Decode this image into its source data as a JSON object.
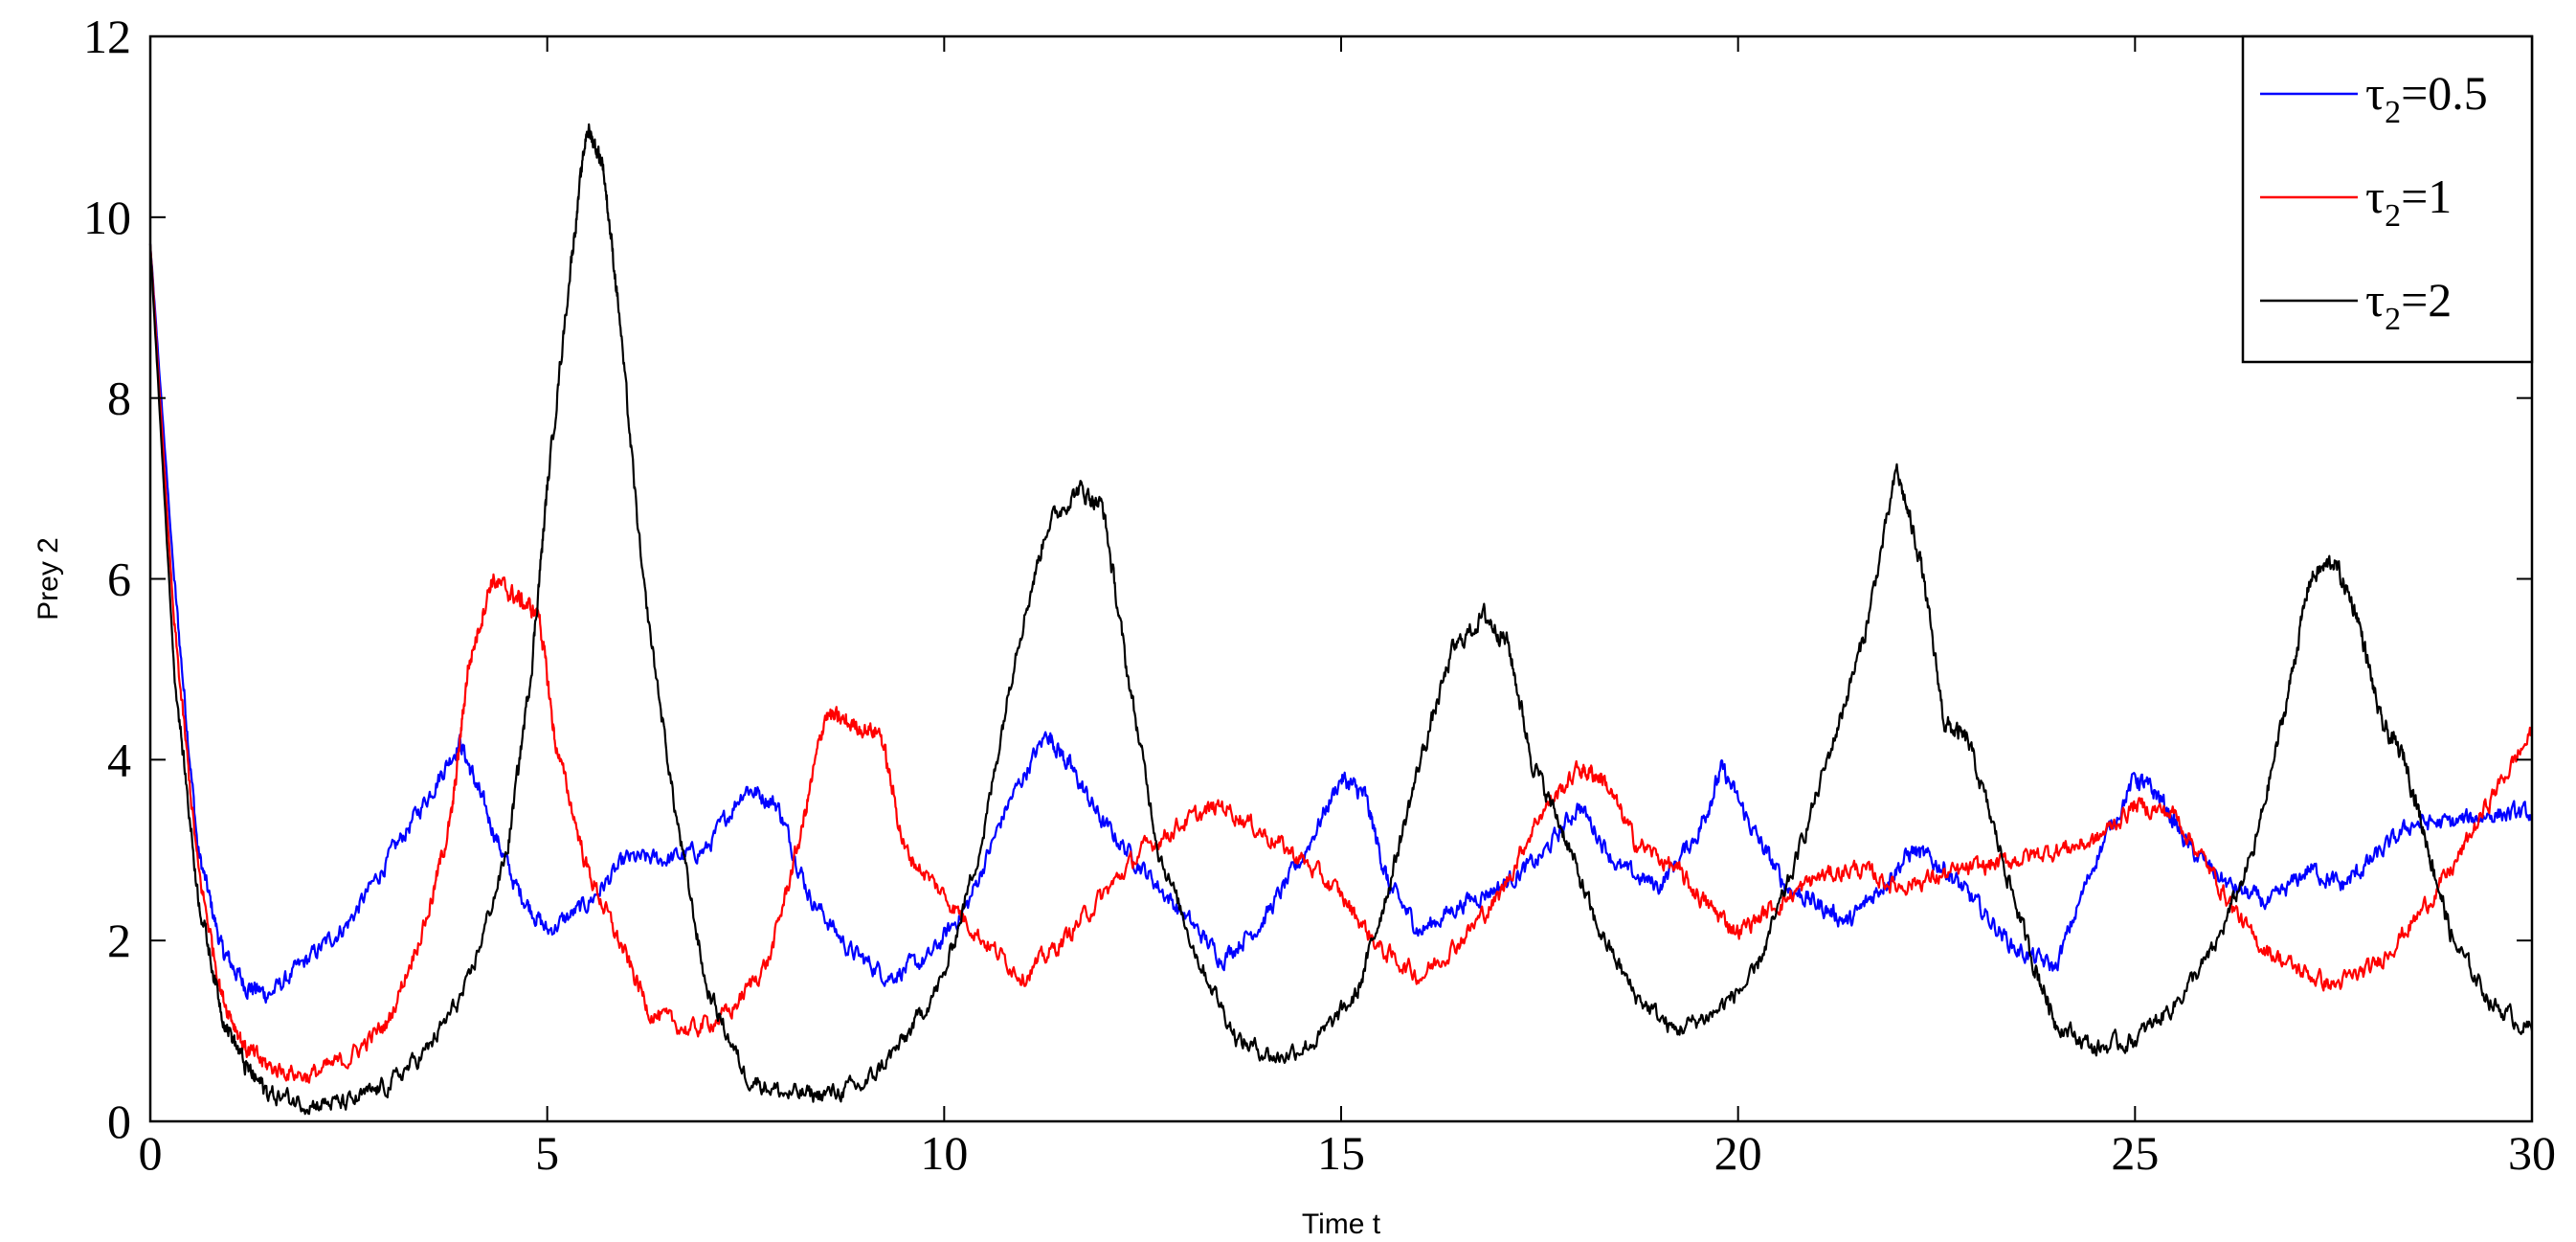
{
  "chart_data": {
    "type": "line",
    "title": "",
    "xlabel": "Time t",
    "ylabel": "Prey 2",
    "xlim": [
      0,
      30
    ],
    "ylim": [
      0,
      12
    ],
    "x_ticks": [
      "0",
      "5",
      "10",
      "15",
      "20",
      "25",
      "30"
    ],
    "y_ticks": [
      "0",
      "2",
      "4",
      "6",
      "8",
      "10",
      "12"
    ],
    "grid": false,
    "legend": {
      "position": "top-right",
      "entries": [
        {
          "symbol": "τ",
          "sub": "2",
          "rest": "=0.5"
        },
        {
          "symbol": "τ",
          "sub": "2",
          "rest": "=1"
        },
        {
          "symbol": "τ",
          "sub": "2",
          "rest": "=2"
        }
      ]
    },
    "series": [
      {
        "name": "τ2=0.5",
        "color": "#0000ff",
        "points": [
          [
            0,
            9.7
          ],
          [
            0.3,
            6.0
          ],
          [
            0.6,
            3.0
          ],
          [
            0.9,
            1.9
          ],
          [
            1.2,
            1.5
          ],
          [
            1.5,
            1.4
          ],
          [
            2.0,
            1.8
          ],
          [
            2.5,
            2.2
          ],
          [
            3.0,
            2.9
          ],
          [
            3.5,
            3.6
          ],
          [
            3.9,
            4.2
          ],
          [
            4.2,
            3.5
          ],
          [
            4.6,
            2.6
          ],
          [
            5.0,
            2.1
          ],
          [
            5.5,
            2.4
          ],
          [
            6.0,
            2.9
          ],
          [
            6.5,
            2.9
          ],
          [
            7.0,
            3.0
          ],
          [
            7.5,
            3.7
          ],
          [
            7.9,
            3.5
          ],
          [
            8.3,
            2.5
          ],
          [
            8.8,
            1.9
          ],
          [
            9.3,
            1.6
          ],
          [
            9.8,
            1.8
          ],
          [
            10.3,
            2.4
          ],
          [
            10.8,
            3.5
          ],
          [
            11.3,
            4.3
          ],
          [
            11.6,
            3.9
          ],
          [
            12.0,
            3.3
          ],
          [
            12.5,
            2.8
          ],
          [
            13.0,
            2.3
          ],
          [
            13.5,
            1.8
          ],
          [
            14.0,
            2.2
          ],
          [
            14.5,
            2.9
          ],
          [
            15.0,
            3.8
          ],
          [
            15.3,
            3.6
          ],
          [
            15.6,
            2.6
          ],
          [
            16.0,
            2.1
          ],
          [
            16.5,
            2.4
          ],
          [
            17.0,
            2.6
          ],
          [
            17.5,
            2.9
          ],
          [
            18.0,
            3.5
          ],
          [
            18.5,
            2.8
          ],
          [
            19.0,
            2.6
          ],
          [
            19.5,
            3.2
          ],
          [
            19.8,
            3.9
          ],
          [
            20.2,
            3.2
          ],
          [
            20.6,
            2.6
          ],
          [
            21.0,
            2.4
          ],
          [
            21.4,
            2.2
          ],
          [
            21.8,
            2.6
          ],
          [
            22.2,
            3.0
          ],
          [
            22.6,
            2.8
          ],
          [
            23.0,
            2.4
          ],
          [
            23.5,
            1.9
          ],
          [
            24.0,
            1.7
          ],
          [
            24.5,
            2.9
          ],
          [
            25.0,
            3.8
          ],
          [
            25.3,
            3.6
          ],
          [
            25.7,
            3.0
          ],
          [
            26.2,
            2.6
          ],
          [
            26.7,
            2.4
          ],
          [
            27.2,
            2.8
          ],
          [
            27.6,
            2.6
          ],
          [
            28.0,
            2.9
          ],
          [
            28.5,
            3.3
          ],
          [
            29.0,
            3.3
          ],
          [
            29.5,
            3.4
          ],
          [
            30.0,
            3.4
          ]
        ]
      },
      {
        "name": "τ2=1",
        "color": "#ff0000",
        "points": [
          [
            0,
            9.7
          ],
          [
            0.3,
            5.5
          ],
          [
            0.6,
            2.8
          ],
          [
            0.9,
            1.4
          ],
          [
            1.2,
            0.8
          ],
          [
            1.5,
            0.6
          ],
          [
            2.0,
            0.5
          ],
          [
            2.5,
            0.7
          ],
          [
            3.0,
            1.1
          ],
          [
            3.5,
            2.3
          ],
          [
            3.8,
            3.4
          ],
          [
            4.0,
            5.0
          ],
          [
            4.3,
            6.0
          ],
          [
            4.6,
            5.8
          ],
          [
            4.9,
            5.6
          ],
          [
            5.1,
            4.2
          ],
          [
            5.5,
            2.8
          ],
          [
            5.9,
            2.0
          ],
          [
            6.3,
            1.2
          ],
          [
            6.8,
            1.0
          ],
          [
            7.3,
            1.2
          ],
          [
            7.8,
            1.8
          ],
          [
            8.2,
            3.2
          ],
          [
            8.5,
            4.5
          ],
          [
            8.8,
            4.4
          ],
          [
            9.2,
            4.3
          ],
          [
            9.5,
            3.0
          ],
          [
            10.0,
            2.5
          ],
          [
            10.5,
            2.0
          ],
          [
            11.0,
            1.6
          ],
          [
            11.5,
            2.0
          ],
          [
            12.0,
            2.5
          ],
          [
            12.5,
            3.0
          ],
          [
            13.0,
            3.3
          ],
          [
            13.5,
            3.5
          ],
          [
            14.0,
            3.2
          ],
          [
            14.5,
            2.9
          ],
          [
            15.0,
            2.5
          ],
          [
            15.5,
            1.9
          ],
          [
            16.0,
            1.6
          ],
          [
            16.5,
            2.0
          ],
          [
            17.0,
            2.5
          ],
          [
            17.5,
            3.4
          ],
          [
            18.0,
            3.9
          ],
          [
            18.3,
            3.8
          ],
          [
            18.7,
            3.1
          ],
          [
            19.2,
            2.8
          ],
          [
            19.6,
            2.4
          ],
          [
            20.0,
            2.1
          ],
          [
            20.5,
            2.4
          ],
          [
            21.0,
            2.7
          ],
          [
            21.5,
            2.8
          ],
          [
            22.0,
            2.6
          ],
          [
            22.5,
            2.7
          ],
          [
            23.0,
            2.8
          ],
          [
            23.5,
            2.9
          ],
          [
            24.0,
            3.0
          ],
          [
            24.5,
            3.1
          ],
          [
            25.0,
            3.5
          ],
          [
            25.5,
            3.4
          ],
          [
            26.0,
            2.7
          ],
          [
            26.5,
            2.0
          ],
          [
            27.0,
            1.7
          ],
          [
            27.5,
            1.5
          ],
          [
            28.0,
            1.7
          ],
          [
            28.5,
            2.2
          ],
          [
            29.0,
            2.8
          ],
          [
            29.5,
            3.6
          ],
          [
            30.0,
            4.3
          ]
        ]
      },
      {
        "name": "τ2=2",
        "color": "#000000",
        "points": [
          [
            0,
            9.7
          ],
          [
            0.3,
            5.0
          ],
          [
            0.6,
            2.5
          ],
          [
            0.9,
            1.2
          ],
          [
            1.2,
            0.6
          ],
          [
            1.5,
            0.3
          ],
          [
            2.0,
            0.2
          ],
          [
            2.5,
            0.2
          ],
          [
            3.0,
            0.4
          ],
          [
            3.5,
            0.8
          ],
          [
            4.0,
            1.5
          ],
          [
            4.5,
            3.0
          ],
          [
            4.8,
            5.0
          ],
          [
            5.0,
            7.0
          ],
          [
            5.3,
            9.5
          ],
          [
            5.5,
            11.0
          ],
          [
            5.7,
            10.6
          ],
          [
            5.9,
            9.0
          ],
          [
            6.2,
            6.0
          ],
          [
            6.6,
            3.5
          ],
          [
            7.0,
            1.5
          ],
          [
            7.5,
            0.5
          ],
          [
            8.0,
            0.3
          ],
          [
            8.5,
            0.3
          ],
          [
            9.0,
            0.4
          ],
          [
            9.5,
            0.9
          ],
          [
            10.0,
            1.6
          ],
          [
            10.5,
            3.2
          ],
          [
            10.9,
            5.2
          ],
          [
            11.3,
            6.6
          ],
          [
            11.7,
            7.0
          ],
          [
            12.0,
            6.8
          ],
          [
            12.3,
            5.0
          ],
          [
            12.7,
            3.0
          ],
          [
            13.2,
            1.8
          ],
          [
            13.7,
            0.9
          ],
          [
            14.2,
            0.7
          ],
          [
            14.7,
            0.9
          ],
          [
            15.2,
            1.4
          ],
          [
            15.6,
            2.6
          ],
          [
            16.0,
            4.0
          ],
          [
            16.4,
            5.2
          ],
          [
            16.8,
            5.6
          ],
          [
            17.1,
            5.3
          ],
          [
            17.4,
            4.0
          ],
          [
            17.8,
            3.2
          ],
          [
            18.2,
            2.2
          ],
          [
            18.7,
            1.4
          ],
          [
            19.2,
            1.0
          ],
          [
            19.7,
            1.2
          ],
          [
            20.2,
            1.6
          ],
          [
            20.7,
            2.8
          ],
          [
            21.2,
            4.2
          ],
          [
            21.6,
            5.4
          ],
          [
            22.0,
            7.2
          ],
          [
            22.3,
            6.2
          ],
          [
            22.6,
            4.4
          ],
          [
            22.9,
            4.2
          ],
          [
            23.3,
            3.0
          ],
          [
            23.7,
            1.8
          ],
          [
            24.0,
            1.1
          ],
          [
            24.5,
            0.8
          ],
          [
            25.0,
            0.9
          ],
          [
            25.5,
            1.3
          ],
          [
            26.0,
            1.9
          ],
          [
            26.5,
            3.0
          ],
          [
            26.9,
            4.6
          ],
          [
            27.2,
            6.0
          ],
          [
            27.5,
            6.2
          ],
          [
            27.8,
            5.6
          ],
          [
            28.1,
            4.4
          ],
          [
            28.4,
            4.0
          ],
          [
            28.7,
            3.0
          ],
          [
            29.0,
            2.0
          ],
          [
            29.5,
            1.3
          ],
          [
            30.0,
            1.0
          ]
        ]
      }
    ]
  }
}
